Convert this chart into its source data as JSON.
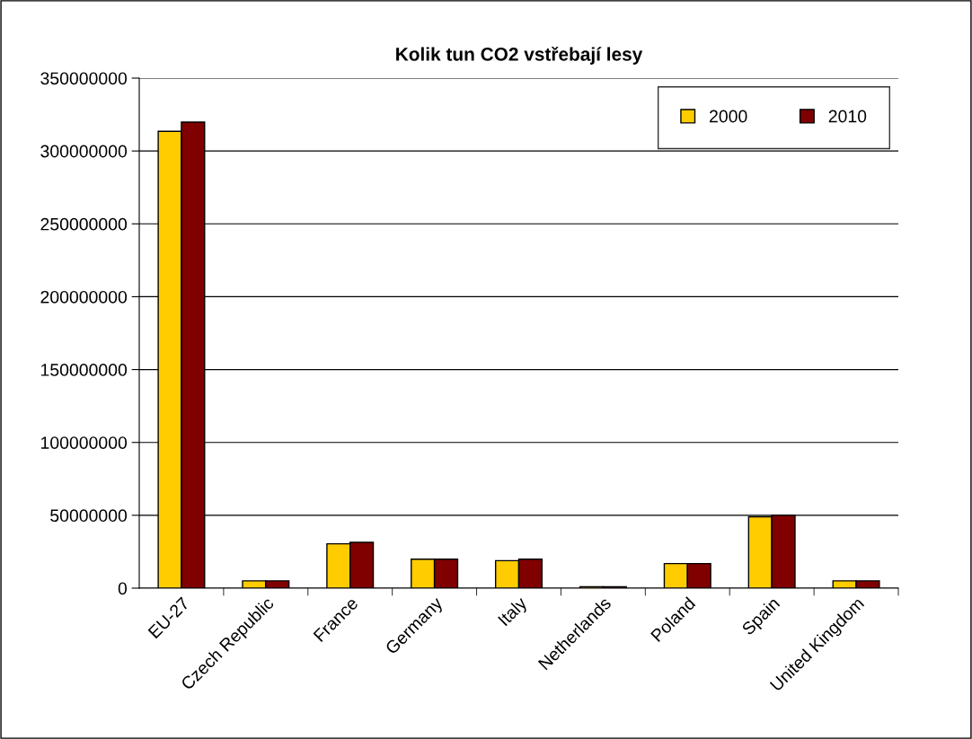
{
  "chart_data": {
    "type": "bar",
    "title": "Kolik tun CO2 vstřebají lesy",
    "categories": [
      "EU-27",
      "Czech Republic",
      "France",
      "Germany",
      "Italy",
      "Netherlands",
      "Poland",
      "Spain",
      "United Kingdom"
    ],
    "series": [
      {
        "name": "2000",
        "color": "#ffcc00",
        "values": [
          313500000,
          5000000,
          30400000,
          19900000,
          18900000,
          1000000,
          16900000,
          49000000,
          5000000
        ]
      },
      {
        "name": "2010",
        "color": "#800000",
        "values": [
          319800000,
          5000000,
          31400000,
          19900000,
          19900000,
          1000000,
          16900000,
          50000000,
          5000000
        ]
      }
    ],
    "ylim": [
      0,
      350000000
    ],
    "yticks": [
      0,
      50000000,
      100000000,
      150000000,
      200000000,
      250000000,
      300000000,
      350000000
    ],
    "grid": "y",
    "legend": "top right"
  }
}
